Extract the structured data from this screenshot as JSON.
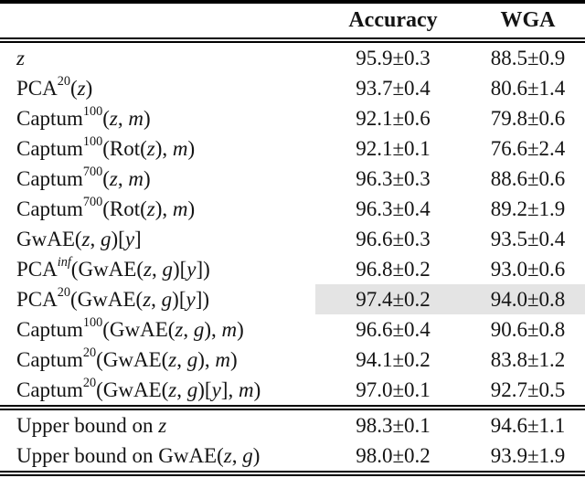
{
  "table": {
    "columns": [
      "",
      "Accuracy",
      "WGA"
    ],
    "rows": [
      {
        "label": "*z*",
        "accuracy": "95.9±0.3",
        "wga": "88.5±0.9"
      },
      {
        "label": "PCA^{20}(*z*)",
        "accuracy": "93.7±0.4",
        "wga": "80.6±1.4"
      },
      {
        "label": "Captum^{100}(*z*, *m*)",
        "accuracy": "92.1±0.6",
        "wga": "79.8±0.6"
      },
      {
        "label": "Captum^{100}(Rot(*z*), *m*)",
        "accuracy": "92.1±0.1",
        "wga": "76.6±2.4"
      },
      {
        "label": "Captum^{700}(*z*, *m*)",
        "accuracy": "96.3±0.3",
        "wga": "88.6±0.6"
      },
      {
        "label": "Captum^{700}(Rot(*z*), *m*)",
        "accuracy": "96.3±0.4",
        "wga": "89.2±1.9"
      },
      {
        "label": "GwAE(*z*, *g*)[*y*]",
        "accuracy": "96.6±0.3",
        "wga": "93.5±0.4"
      },
      {
        "label": "PCA^{*inf*}(GwAE(*z*, *g*)[*y*])",
        "accuracy": "96.8±0.2",
        "wga": "93.0±0.6"
      },
      {
        "label": "PCA^{20}(GwAE(*z*, *g*)[*y*])",
        "accuracy": "97.4±0.2",
        "wga": "94.0±0.8"
      },
      {
        "label": "Captum^{100}(GwAE(*z*, *g*), *m*)",
        "accuracy": "96.6±0.4",
        "wga": "90.6±0.8"
      },
      {
        "label": "Captum^{20}(GwAE(*z*, *g*), *m*)",
        "accuracy": "94.1±0.2",
        "wga": "83.8±1.2"
      },
      {
        "label": "Captum^{20}(GwAE(*z*, *g*)[*y*], *m*)",
        "accuracy": "97.0±0.1",
        "wga": "92.7±0.5"
      }
    ],
    "footer_rows": [
      {
        "label": "Upper bound on *z*",
        "accuracy": "98.3±0.1",
        "wga": "94.6±1.1"
      },
      {
        "label": "Upper bound on GwAE(*z*, *g*)",
        "accuracy": "98.0±0.2",
        "wga": "93.9±1.9"
      }
    ],
    "highlighted_row_index": 8,
    "highlight_color": "#e4e4e4"
  }
}
